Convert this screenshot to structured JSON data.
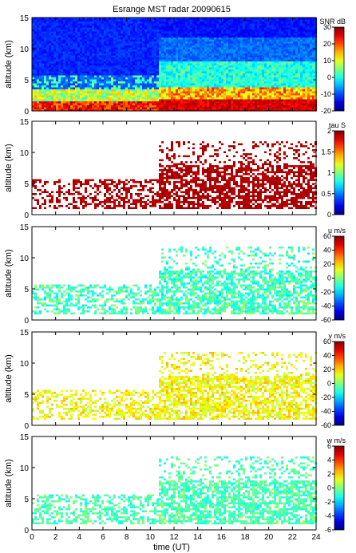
{
  "chart_data": {
    "type": "heatmap",
    "title": "Esrange MST radar 20090615",
    "xlabel": "time (UT)",
    "xlim": [
      0,
      24
    ],
    "x_ticks": [
      0,
      2,
      4,
      6,
      8,
      10,
      12,
      14,
      16,
      18,
      20,
      22,
      24
    ],
    "panels": [
      {
        "id": "snr",
        "ylabel": "altitude (km)",
        "ylim": [
          0,
          15
        ],
        "y_ticks": [
          0,
          5,
          10,
          15
        ],
        "colorbar_label": "SNR dB",
        "clim": [
          -20,
          30
        ],
        "colorbar_ticks": [
          30,
          20,
          10,
          0,
          -10,
          -20
        ]
      },
      {
        "id": "tau",
        "ylabel": "altitude (km)",
        "ylim": [
          0,
          15
        ],
        "y_ticks": [
          0,
          5,
          10,
          15
        ],
        "colorbar_label": "tau S",
        "clim": [
          0,
          2
        ],
        "colorbar_ticks": [
          "2",
          "1.5",
          "1",
          "0.5",
          "0"
        ]
      },
      {
        "id": "u",
        "ylabel": "altitude (km)",
        "ylim": [
          0,
          15
        ],
        "y_ticks": [
          0,
          5,
          10,
          15
        ],
        "colorbar_label": "u m/s",
        "clim": [
          -60,
          60
        ],
        "colorbar_ticks": [
          60,
          40,
          20,
          0,
          -20,
          -40,
          -60
        ]
      },
      {
        "id": "v",
        "ylabel": "altitude (km)",
        "ylim": [
          0,
          15
        ],
        "y_ticks": [
          0,
          5,
          10,
          15
        ],
        "colorbar_label": "v m/s",
        "clim": [
          -60,
          60
        ],
        "colorbar_ticks": [
          60,
          40,
          20,
          0,
          -20,
          -40,
          -60
        ]
      },
      {
        "id": "w",
        "ylabel": "altitude (km)",
        "ylim": [
          0,
          15
        ],
        "y_ticks": [
          0,
          5,
          10,
          15
        ],
        "colorbar_label": "w m/s",
        "clim": [
          -6,
          6
        ],
        "colorbar_ticks": [
          6,
          4,
          2,
          0,
          -2,
          -4,
          -6
        ]
      }
    ]
  }
}
